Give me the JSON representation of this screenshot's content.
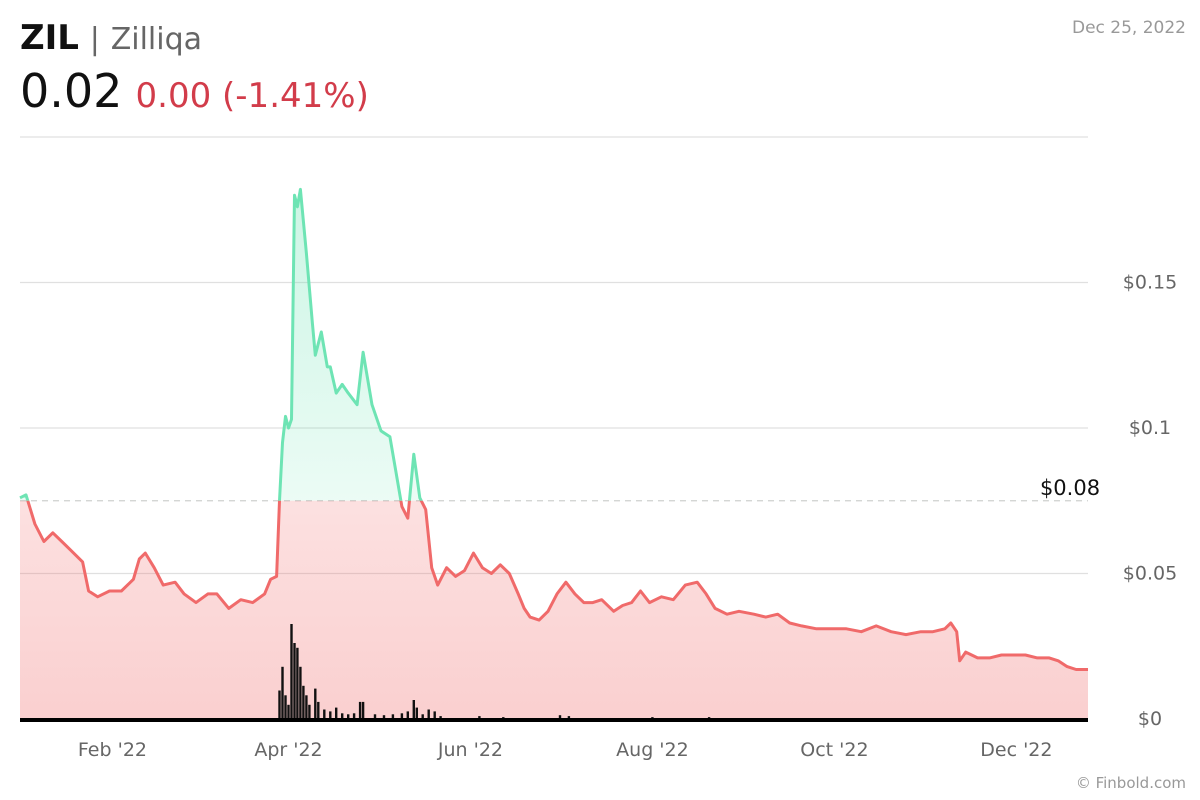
{
  "header": {
    "symbol": "ZIL",
    "separator": "|",
    "name": "Zilliqa",
    "price": "0.02",
    "change": "0.00 (-1.41%)",
    "change_color": "#d23c4a",
    "date": "Dec 25, 2022"
  },
  "footer": {
    "copyright": "© Finbold.com"
  },
  "chart_data": {
    "type": "area",
    "reference": {
      "value": 0.075,
      "label": "$0.08"
    },
    "ylim": [
      0,
      0.2
    ],
    "y_ticks": [
      {
        "value": 0.05,
        "label": "$0.05"
      },
      {
        "value": 0.1,
        "label": "$0.1"
      },
      {
        "value": 0.15,
        "label": "$0.15"
      },
      {
        "value": 0,
        "label": "$0"
      }
    ],
    "x_ticks": [
      {
        "x": "2022-02-01",
        "label": "Feb '22"
      },
      {
        "x": "2022-04-01",
        "label": "Apr '22"
      },
      {
        "x": "2022-06-01",
        "label": "Jun '22"
      },
      {
        "x": "2022-08-01",
        "label": "Aug '22"
      },
      {
        "x": "2022-10-01",
        "label": "Oct '22"
      },
      {
        "x": "2022-12-01",
        "label": "Dec '22"
      }
    ],
    "colors": {
      "above": "#6ee4b4",
      "below": "#f06a6a",
      "volume": "#111111",
      "grid": "#e0e0e0"
    },
    "series": [
      {
        "values": [
          [
            "2022-01-01",
            0.076
          ],
          [
            "2022-01-03",
            0.077
          ],
          [
            "2022-01-06",
            0.067
          ],
          [
            "2022-01-09",
            0.061
          ],
          [
            "2022-01-12",
            0.064
          ],
          [
            "2022-01-15",
            0.061
          ],
          [
            "2022-01-18",
            0.058
          ],
          [
            "2022-01-22",
            0.054
          ],
          [
            "2022-01-24",
            0.044
          ],
          [
            "2022-01-27",
            0.042
          ],
          [
            "2022-01-31",
            0.044
          ],
          [
            "2022-02-04",
            0.044
          ],
          [
            "2022-02-08",
            0.048
          ],
          [
            "2022-02-10",
            0.055
          ],
          [
            "2022-02-12",
            0.057
          ],
          [
            "2022-02-15",
            0.052
          ],
          [
            "2022-02-18",
            0.046
          ],
          [
            "2022-02-22",
            0.047
          ],
          [
            "2022-02-25",
            0.043
          ],
          [
            "2022-03-01",
            0.04
          ],
          [
            "2022-03-05",
            0.043
          ],
          [
            "2022-03-08",
            0.043
          ],
          [
            "2022-03-12",
            0.038
          ],
          [
            "2022-03-16",
            0.041
          ],
          [
            "2022-03-20",
            0.04
          ],
          [
            "2022-03-24",
            0.043
          ],
          [
            "2022-03-26",
            0.048
          ],
          [
            "2022-03-28",
            0.049
          ],
          [
            "2022-03-29",
            0.075
          ],
          [
            "2022-03-30",
            0.095
          ],
          [
            "2022-03-31",
            0.104
          ],
          [
            "2022-04-01",
            0.1
          ],
          [
            "2022-04-02",
            0.103
          ],
          [
            "2022-04-03",
            0.18
          ],
          [
            "2022-04-04",
            0.176
          ],
          [
            "2022-04-05",
            0.182
          ],
          [
            "2022-04-07",
            0.16
          ],
          [
            "2022-04-09",
            0.136
          ],
          [
            "2022-04-10",
            0.125
          ],
          [
            "2022-04-12",
            0.133
          ],
          [
            "2022-04-14",
            0.121
          ],
          [
            "2022-04-15",
            0.121
          ],
          [
            "2022-04-17",
            0.112
          ],
          [
            "2022-04-19",
            0.115
          ],
          [
            "2022-04-21",
            0.112
          ],
          [
            "2022-04-24",
            0.108
          ],
          [
            "2022-04-26",
            0.126
          ],
          [
            "2022-04-29",
            0.108
          ],
          [
            "2022-05-02",
            0.099
          ],
          [
            "2022-05-05",
            0.097
          ],
          [
            "2022-05-07",
            0.085
          ],
          [
            "2022-05-09",
            0.073
          ],
          [
            "2022-05-11",
            0.069
          ],
          [
            "2022-05-13",
            0.091
          ],
          [
            "2022-05-15",
            0.076
          ],
          [
            "2022-05-17",
            0.072
          ],
          [
            "2022-05-19",
            0.052
          ],
          [
            "2022-05-21",
            0.046
          ],
          [
            "2022-05-24",
            0.052
          ],
          [
            "2022-05-27",
            0.049
          ],
          [
            "2022-05-30",
            0.051
          ],
          [
            "2022-06-02",
            0.057
          ],
          [
            "2022-06-05",
            0.052
          ],
          [
            "2022-06-08",
            0.05
          ],
          [
            "2022-06-11",
            0.053
          ],
          [
            "2022-06-14",
            0.05
          ],
          [
            "2022-06-17",
            0.043
          ],
          [
            "2022-06-19",
            0.038
          ],
          [
            "2022-06-21",
            0.035
          ],
          [
            "2022-06-24",
            0.034
          ],
          [
            "2022-06-27",
            0.037
          ],
          [
            "2022-06-30",
            0.043
          ],
          [
            "2022-07-03",
            0.047
          ],
          [
            "2022-07-06",
            0.043
          ],
          [
            "2022-07-09",
            0.04
          ],
          [
            "2022-07-12",
            0.04
          ],
          [
            "2022-07-15",
            0.041
          ],
          [
            "2022-07-19",
            0.037
          ],
          [
            "2022-07-22",
            0.039
          ],
          [
            "2022-07-25",
            0.04
          ],
          [
            "2022-07-28",
            0.044
          ],
          [
            "2022-07-31",
            0.04
          ],
          [
            "2022-08-04",
            0.042
          ],
          [
            "2022-08-08",
            0.041
          ],
          [
            "2022-08-12",
            0.046
          ],
          [
            "2022-08-16",
            0.047
          ],
          [
            "2022-08-19",
            0.043
          ],
          [
            "2022-08-22",
            0.038
          ],
          [
            "2022-08-26",
            0.036
          ],
          [
            "2022-08-30",
            0.037
          ],
          [
            "2022-09-04",
            0.036
          ],
          [
            "2022-09-08",
            0.035
          ],
          [
            "2022-09-12",
            0.036
          ],
          [
            "2022-09-16",
            0.033
          ],
          [
            "2022-09-20",
            0.032
          ],
          [
            "2022-09-25",
            0.031
          ],
          [
            "2022-09-30",
            0.031
          ],
          [
            "2022-10-05",
            0.031
          ],
          [
            "2022-10-10",
            0.03
          ],
          [
            "2022-10-15",
            0.032
          ],
          [
            "2022-10-20",
            0.03
          ],
          [
            "2022-10-25",
            0.029
          ],
          [
            "2022-10-30",
            0.03
          ],
          [
            "2022-11-03",
            0.03
          ],
          [
            "2022-11-07",
            0.031
          ],
          [
            "2022-11-09",
            0.033
          ],
          [
            "2022-11-11",
            0.03
          ],
          [
            "2022-11-12",
            0.02
          ],
          [
            "2022-11-14",
            0.023
          ],
          [
            "2022-11-18",
            0.021
          ],
          [
            "2022-11-22",
            0.021
          ],
          [
            "2022-11-26",
            0.022
          ],
          [
            "2022-11-30",
            0.022
          ],
          [
            "2022-12-04",
            0.022
          ],
          [
            "2022-12-08",
            0.021
          ],
          [
            "2022-12-12",
            0.021
          ],
          [
            "2022-12-15",
            0.02
          ],
          [
            "2022-12-18",
            0.018
          ],
          [
            "2022-12-21",
            0.017
          ],
          [
            "2022-12-25",
            0.017
          ]
        ]
      }
    ],
    "volume": [
      [
        "2022-03-29",
        0.3
      ],
      [
        "2022-03-30",
        0.55
      ],
      [
        "2022-03-31",
        0.25
      ],
      [
        "2022-04-01",
        0.15
      ],
      [
        "2022-04-02",
        1.0
      ],
      [
        "2022-04-03",
        0.8
      ],
      [
        "2022-04-04",
        0.75
      ],
      [
        "2022-04-05",
        0.55
      ],
      [
        "2022-04-06",
        0.35
      ],
      [
        "2022-04-07",
        0.25
      ],
      [
        "2022-04-08",
        0.15
      ],
      [
        "2022-04-10",
        0.32
      ],
      [
        "2022-04-11",
        0.18
      ],
      [
        "2022-04-13",
        0.1
      ],
      [
        "2022-04-15",
        0.08
      ],
      [
        "2022-04-17",
        0.12
      ],
      [
        "2022-04-19",
        0.06
      ],
      [
        "2022-04-21",
        0.05
      ],
      [
        "2022-04-23",
        0.06
      ],
      [
        "2022-04-25",
        0.18
      ],
      [
        "2022-04-26",
        0.18
      ],
      [
        "2022-04-30",
        0.05
      ],
      [
        "2022-05-03",
        0.04
      ],
      [
        "2022-05-06",
        0.05
      ],
      [
        "2022-05-09",
        0.06
      ],
      [
        "2022-05-11",
        0.08
      ],
      [
        "2022-05-13",
        0.2
      ],
      [
        "2022-05-14",
        0.12
      ],
      [
        "2022-05-16",
        0.05
      ],
      [
        "2022-05-18",
        0.1
      ],
      [
        "2022-05-20",
        0.08
      ],
      [
        "2022-05-22",
        0.03
      ],
      [
        "2022-06-04",
        0.03
      ],
      [
        "2022-06-12",
        0.02
      ],
      [
        "2022-07-01",
        0.04
      ],
      [
        "2022-07-04",
        0.03
      ],
      [
        "2022-08-01",
        0.02
      ],
      [
        "2022-08-20",
        0.02
      ]
    ]
  }
}
